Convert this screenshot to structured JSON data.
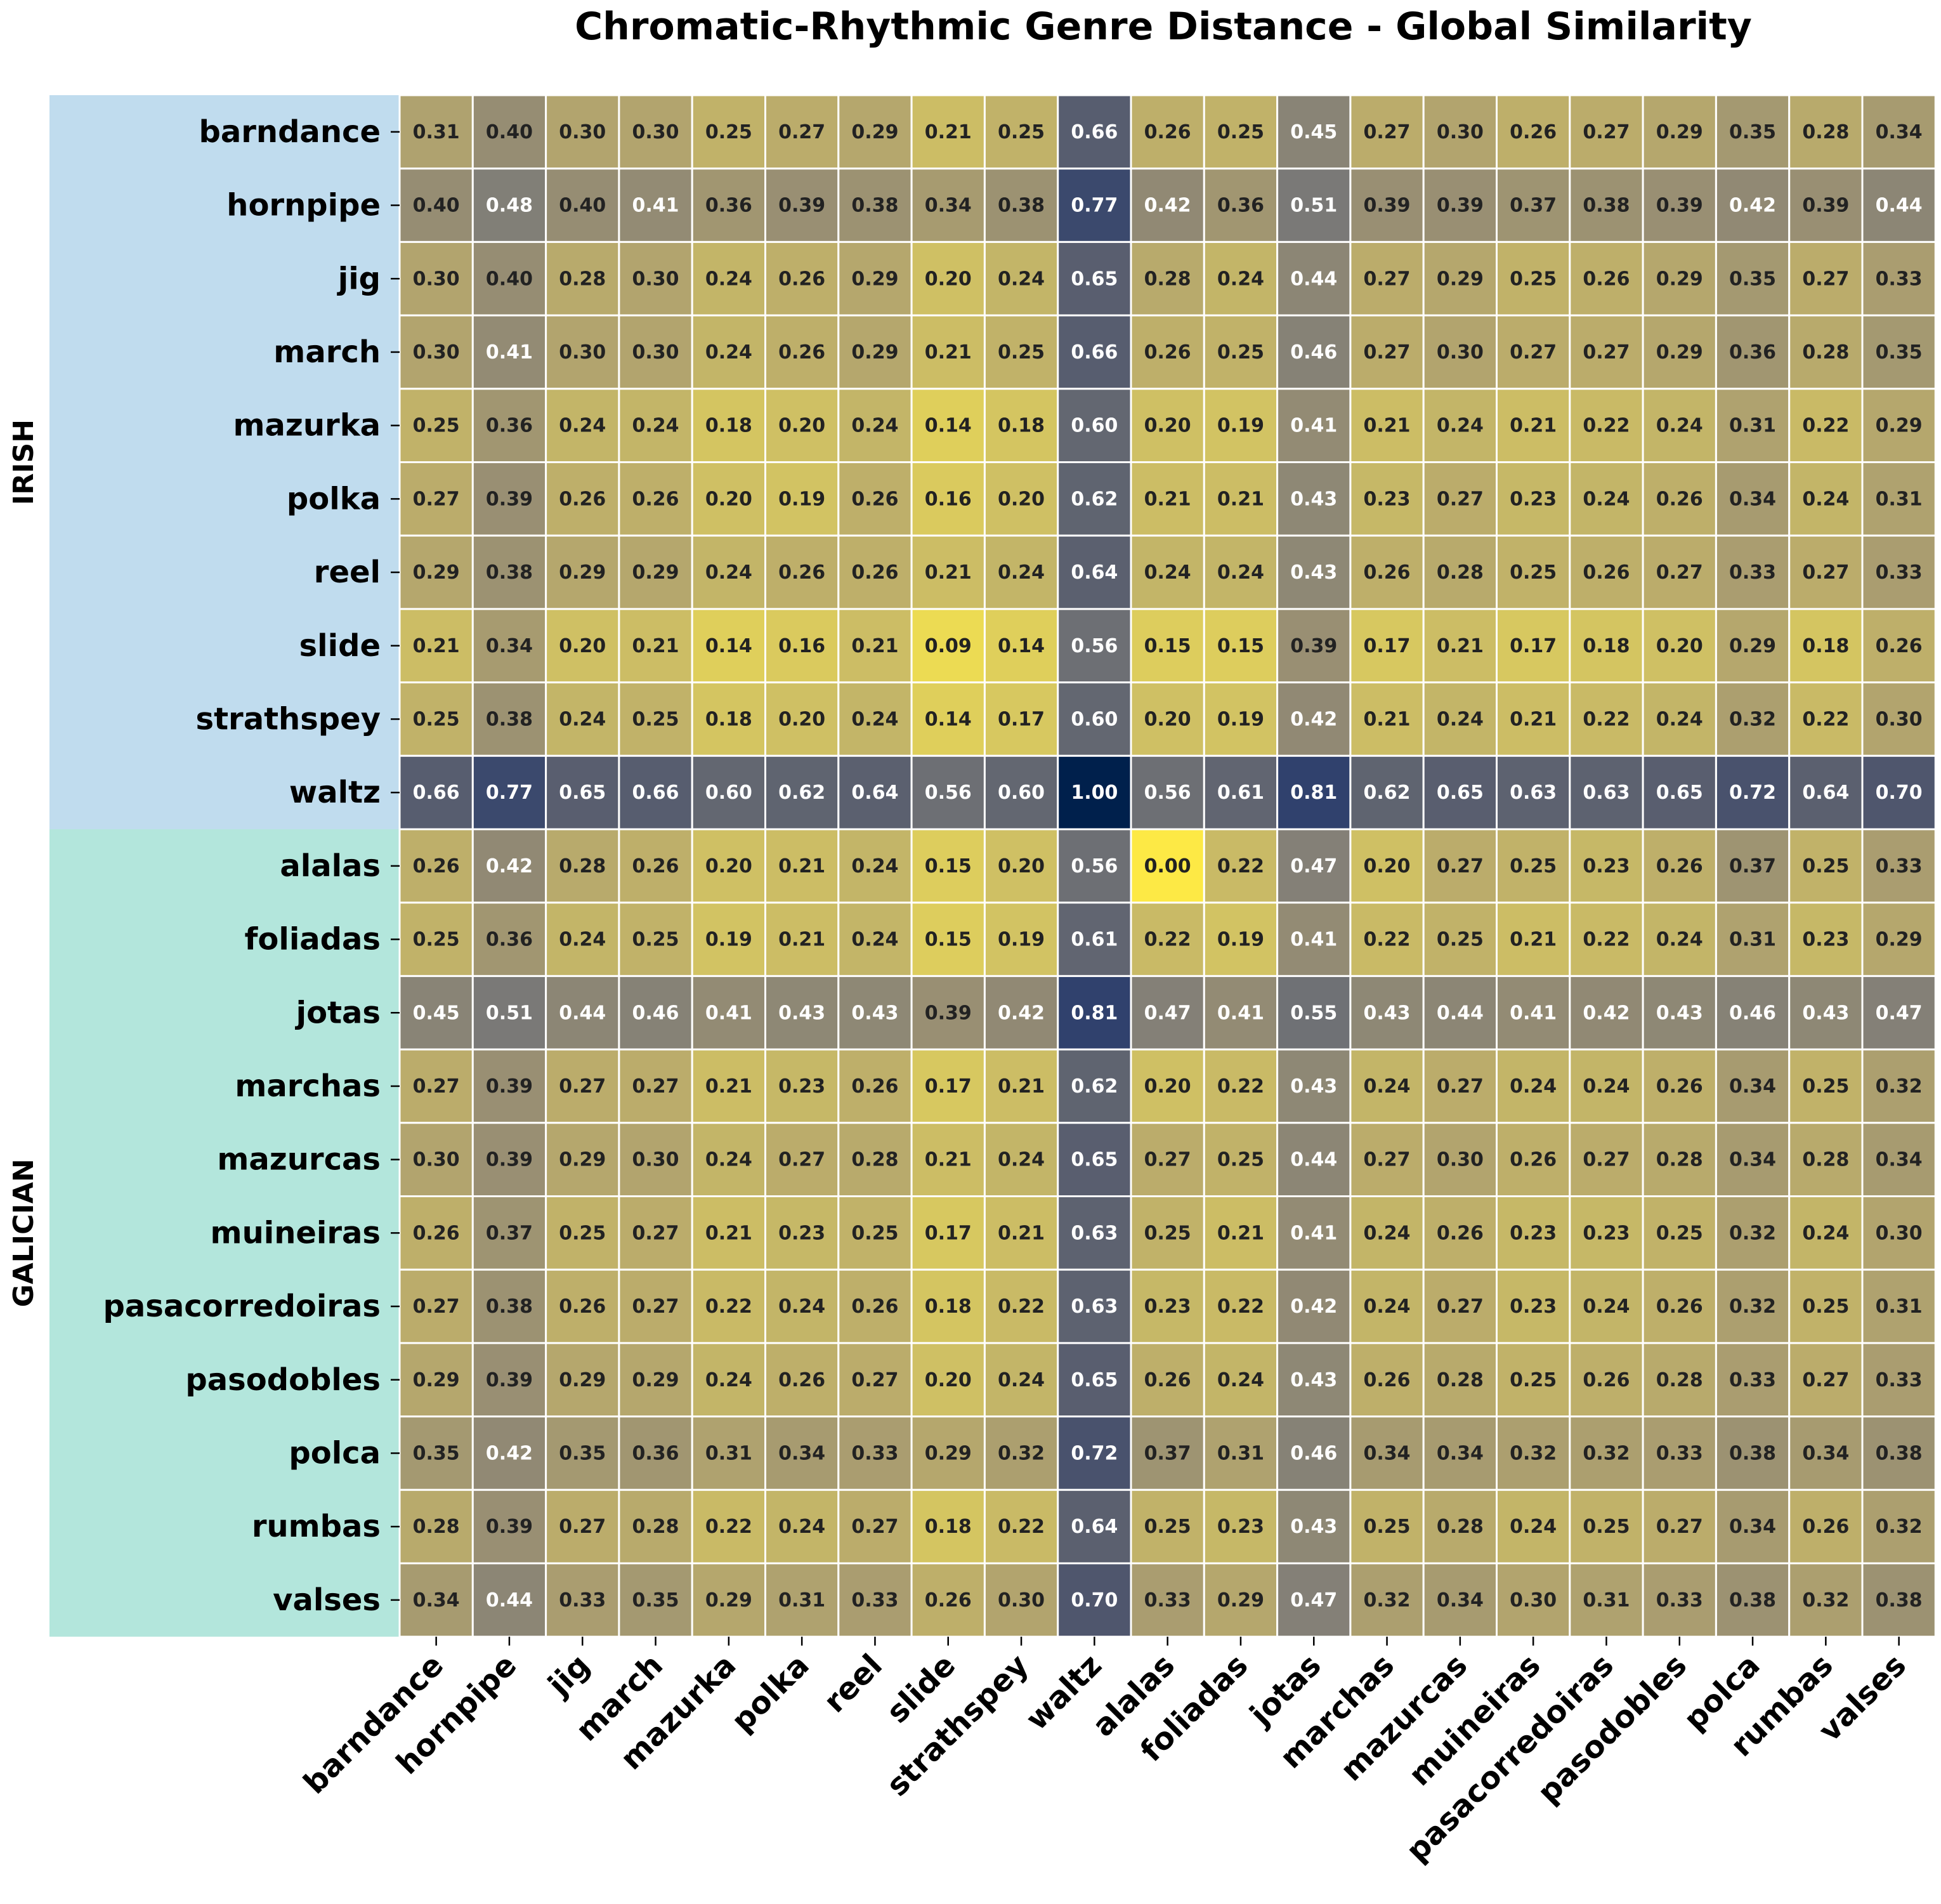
{
  "chart_data": {
    "type": "heatmap",
    "title": "Chromatic-Rhythmic Genre Distance - Global Similarity",
    "xlabel": "",
    "ylabel": "",
    "colormap": "cividis_r",
    "vmin": 0.0,
    "vmax": 1.0,
    "rows": [
      "barndance",
      "hornpipe",
      "jig",
      "march",
      "mazurka",
      "polka",
      "reel",
      "slide",
      "strathspey",
      "waltz",
      "alalas",
      "foliadas",
      "jotas",
      "marchas",
      "mazurcas",
      "muineiras",
      "pasacorredoiras",
      "pasodobles",
      "polca",
      "rumbas",
      "valses"
    ],
    "columns": [
      "barndance",
      "hornpipe",
      "jig",
      "march",
      "mazurka",
      "polka",
      "reel",
      "slide",
      "strathspey",
      "waltz",
      "alalas",
      "foliadas",
      "jotas",
      "marchas",
      "mazurcas",
      "muineiras",
      "pasacorredoiras",
      "pasodobles",
      "polca",
      "rumbas",
      "valses"
    ],
    "row_groups": [
      {
        "label": "IRISH",
        "start": 0,
        "end": 9,
        "color": "#c0dcee"
      },
      {
        "label": "GALICIAN",
        "start": 10,
        "end": 20,
        "color": "#b3e6dc"
      }
    ],
    "values": [
      [
        0.31,
        0.4,
        0.3,
        0.3,
        0.25,
        0.27,
        0.29,
        0.21,
        0.25,
        0.66,
        0.26,
        0.25,
        0.45,
        0.27,
        0.3,
        0.26,
        0.27,
        0.29,
        0.35,
        0.28,
        0.34
      ],
      [
        0.4,
        0.48,
        0.4,
        0.41,
        0.36,
        0.39,
        0.38,
        0.34,
        0.38,
        0.77,
        0.42,
        0.36,
        0.51,
        0.39,
        0.39,
        0.37,
        0.38,
        0.39,
        0.42,
        0.39,
        0.44
      ],
      [
        0.3,
        0.4,
        0.28,
        0.3,
        0.24,
        0.26,
        0.29,
        0.2,
        0.24,
        0.65,
        0.28,
        0.24,
        0.44,
        0.27,
        0.29,
        0.25,
        0.26,
        0.29,
        0.35,
        0.27,
        0.33
      ],
      [
        0.3,
        0.41,
        0.3,
        0.3,
        0.24,
        0.26,
        0.29,
        0.21,
        0.25,
        0.66,
        0.26,
        0.25,
        0.46,
        0.27,
        0.3,
        0.27,
        0.27,
        0.29,
        0.36,
        0.28,
        0.35
      ],
      [
        0.25,
        0.36,
        0.24,
        0.24,
        0.18,
        0.2,
        0.24,
        0.14,
        0.18,
        0.6,
        0.2,
        0.19,
        0.41,
        0.21,
        0.24,
        0.21,
        0.22,
        0.24,
        0.31,
        0.22,
        0.29
      ],
      [
        0.27,
        0.39,
        0.26,
        0.26,
        0.2,
        0.19,
        0.26,
        0.16,
        0.2,
        0.62,
        0.21,
        0.21,
        0.43,
        0.23,
        0.27,
        0.23,
        0.24,
        0.26,
        0.34,
        0.24,
        0.31
      ],
      [
        0.29,
        0.38,
        0.29,
        0.29,
        0.24,
        0.26,
        0.26,
        0.21,
        0.24,
        0.64,
        0.24,
        0.24,
        0.43,
        0.26,
        0.28,
        0.25,
        0.26,
        0.27,
        0.33,
        0.27,
        0.33
      ],
      [
        0.21,
        0.34,
        0.2,
        0.21,
        0.14,
        0.16,
        0.21,
        0.09,
        0.14,
        0.56,
        0.15,
        0.15,
        0.39,
        0.17,
        0.21,
        0.17,
        0.18,
        0.2,
        0.29,
        0.18,
        0.26
      ],
      [
        0.25,
        0.38,
        0.24,
        0.25,
        0.18,
        0.2,
        0.24,
        0.14,
        0.17,
        0.6,
        0.2,
        0.19,
        0.42,
        0.21,
        0.24,
        0.21,
        0.22,
        0.24,
        0.32,
        0.22,
        0.3
      ],
      [
        0.66,
        0.77,
        0.65,
        0.66,
        0.6,
        0.62,
        0.64,
        0.56,
        0.6,
        1.0,
        0.56,
        0.61,
        0.81,
        0.62,
        0.65,
        0.63,
        0.63,
        0.65,
        0.72,
        0.64,
        0.7
      ],
      [
        0.26,
        0.42,
        0.28,
        0.26,
        0.2,
        0.21,
        0.24,
        0.15,
        0.2,
        0.56,
        0.0,
        0.22,
        0.47,
        0.2,
        0.27,
        0.25,
        0.23,
        0.26,
        0.37,
        0.25,
        0.33
      ],
      [
        0.25,
        0.36,
        0.24,
        0.25,
        0.19,
        0.21,
        0.24,
        0.15,
        0.19,
        0.61,
        0.22,
        0.19,
        0.41,
        0.22,
        0.25,
        0.21,
        0.22,
        0.24,
        0.31,
        0.23,
        0.29
      ],
      [
        0.45,
        0.51,
        0.44,
        0.46,
        0.41,
        0.43,
        0.43,
        0.39,
        0.42,
        0.81,
        0.47,
        0.41,
        0.55,
        0.43,
        0.44,
        0.41,
        0.42,
        0.43,
        0.46,
        0.43,
        0.47
      ],
      [
        0.27,
        0.39,
        0.27,
        0.27,
        0.21,
        0.23,
        0.26,
        0.17,
        0.21,
        0.62,
        0.2,
        0.22,
        0.43,
        0.24,
        0.27,
        0.24,
        0.24,
        0.26,
        0.34,
        0.25,
        0.32
      ],
      [
        0.3,
        0.39,
        0.29,
        0.3,
        0.24,
        0.27,
        0.28,
        0.21,
        0.24,
        0.65,
        0.27,
        0.25,
        0.44,
        0.27,
        0.3,
        0.26,
        0.27,
        0.28,
        0.34,
        0.28,
        0.34
      ],
      [
        0.26,
        0.37,
        0.25,
        0.27,
        0.21,
        0.23,
        0.25,
        0.17,
        0.21,
        0.63,
        0.25,
        0.21,
        0.41,
        0.24,
        0.26,
        0.23,
        0.23,
        0.25,
        0.32,
        0.24,
        0.3
      ],
      [
        0.27,
        0.38,
        0.26,
        0.27,
        0.22,
        0.24,
        0.26,
        0.18,
        0.22,
        0.63,
        0.23,
        0.22,
        0.42,
        0.24,
        0.27,
        0.23,
        0.24,
        0.26,
        0.32,
        0.25,
        0.31
      ],
      [
        0.29,
        0.39,
        0.29,
        0.29,
        0.24,
        0.26,
        0.27,
        0.2,
        0.24,
        0.65,
        0.26,
        0.24,
        0.43,
        0.26,
        0.28,
        0.25,
        0.26,
        0.28,
        0.33,
        0.27,
        0.33
      ],
      [
        0.35,
        0.42,
        0.35,
        0.36,
        0.31,
        0.34,
        0.33,
        0.29,
        0.32,
        0.72,
        0.37,
        0.31,
        0.46,
        0.34,
        0.34,
        0.32,
        0.32,
        0.33,
        0.38,
        0.34,
        0.38
      ],
      [
        0.28,
        0.39,
        0.27,
        0.28,
        0.22,
        0.24,
        0.27,
        0.18,
        0.22,
        0.64,
        0.25,
        0.23,
        0.43,
        0.25,
        0.28,
        0.24,
        0.25,
        0.27,
        0.34,
        0.26,
        0.32
      ],
      [
        0.34,
        0.44,
        0.33,
        0.35,
        0.29,
        0.31,
        0.33,
        0.26,
        0.3,
        0.7,
        0.33,
        0.29,
        0.47,
        0.32,
        0.34,
        0.3,
        0.31,
        0.33,
        0.38,
        0.32,
        0.38
      ]
    ],
    "value_format": "2 decimals",
    "grid": true,
    "legend": "none"
  }
}
